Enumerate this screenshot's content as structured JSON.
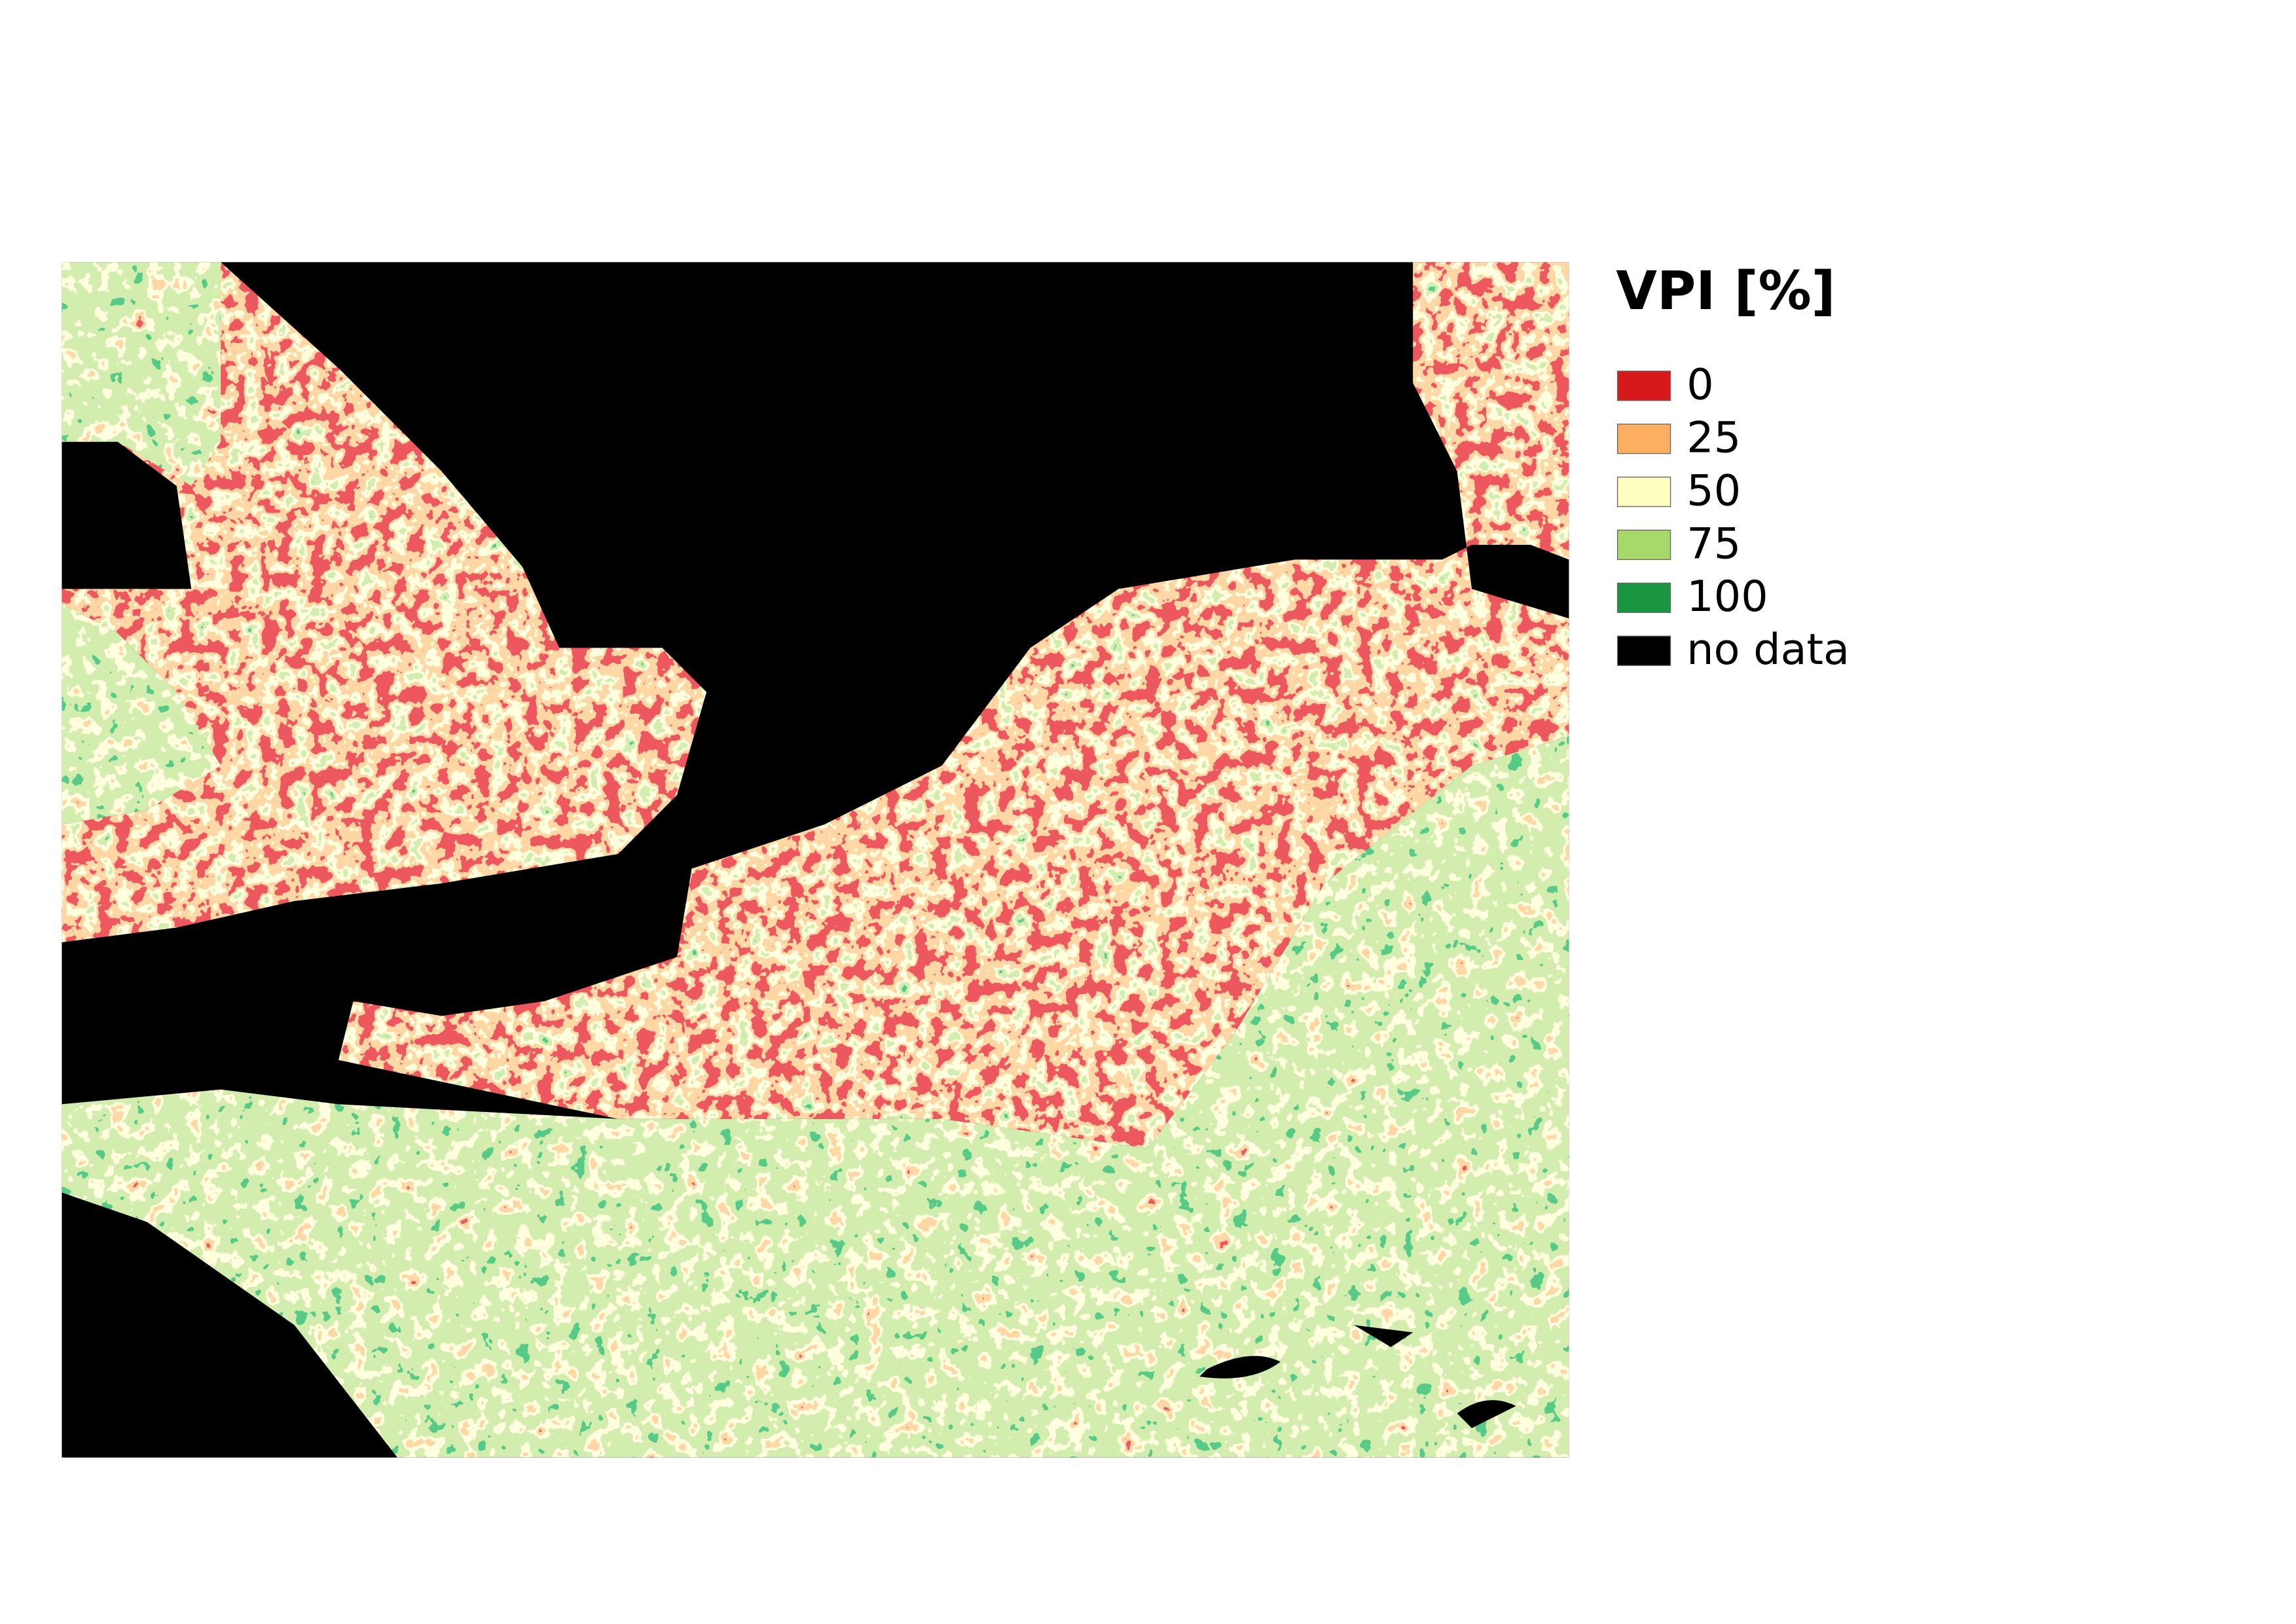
{
  "legend": {
    "title": "VPI [%]",
    "items": [
      {
        "label": "0",
        "color": "#d7191c"
      },
      {
        "label": "25",
        "color": "#fdae61"
      },
      {
        "label": "50",
        "color": "#ffffc0"
      },
      {
        "label": "75",
        "color": "#a6d96a"
      },
      {
        "label": "100",
        "color": "#1a9641"
      },
      {
        "label": "no data",
        "color": "#000000"
      }
    ]
  }
}
